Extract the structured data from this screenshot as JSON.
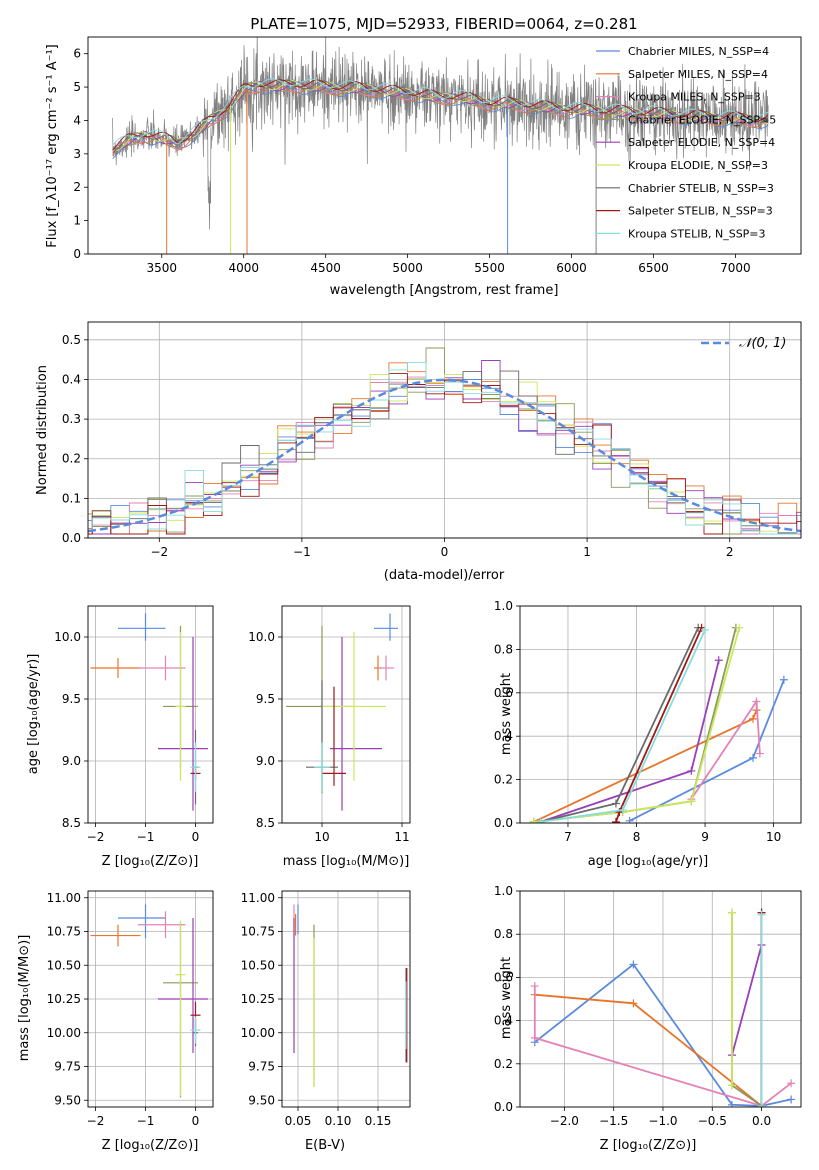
{
  "colors": [
    "#5a8ade",
    "#e8742a",
    "#e482b8",
    "#8b9a5a",
    "#9a3fb8",
    "#c9e85a",
    "#6a6a6a",
    "#a01818",
    "#88dcdc"
  ],
  "chart_data": [
    {
      "id": "spectrum",
      "type": "line",
      "title": "PLATE=1075, MJD=52933, FIBERID=0064, z=0.281",
      "xlabel": "wavelength [Angstrom, rest frame]",
      "ylabel": "Flux [f_λ10⁻¹⁷ erg cm⁻² s⁻¹ A⁻¹]",
      "xlim": [
        3050,
        7400
      ],
      "ylim": [
        0,
        6.5
      ],
      "xticks": [
        3500,
        4000,
        4500,
        5000,
        5500,
        6000,
        6500,
        7000
      ],
      "yticks": [
        0,
        1,
        2,
        3,
        4,
        5,
        6
      ],
      "grid": false,
      "legend_position": "right",
      "series_note": "data spectrum (grey) with 9 model fits overplotted",
      "continuum": [
        [
          3200,
          3.1
        ],
        [
          3300,
          3.4
        ],
        [
          3400,
          3.55
        ],
        [
          3500,
          3.45
        ],
        [
          3600,
          3.3
        ],
        [
          3700,
          3.6
        ],
        [
          3800,
          4.0
        ],
        [
          3900,
          4.35
        ],
        [
          4000,
          4.9
        ],
        [
          4100,
          5.05
        ],
        [
          4200,
          5.0
        ],
        [
          4300,
          5.05
        ],
        [
          4400,
          5.0
        ],
        [
          4500,
          5.0
        ],
        [
          4600,
          4.95
        ],
        [
          4700,
          4.95
        ],
        [
          4800,
          4.9
        ],
        [
          4900,
          4.85
        ],
        [
          5000,
          4.8
        ],
        [
          5100,
          4.75
        ],
        [
          5200,
          4.65
        ],
        [
          5300,
          4.7
        ],
        [
          5400,
          4.6
        ],
        [
          5500,
          4.5
        ],
        [
          5600,
          4.5
        ],
        [
          5700,
          4.45
        ],
        [
          5800,
          4.4
        ],
        [
          5900,
          4.35
        ],
        [
          6000,
          4.3
        ],
        [
          6100,
          4.3
        ],
        [
          6200,
          4.25
        ],
        [
          6300,
          4.25
        ],
        [
          6400,
          4.2
        ],
        [
          6500,
          4.2
        ],
        [
          6600,
          4.15
        ],
        [
          6700,
          4.1
        ],
        [
          6800,
          4.1
        ],
        [
          6900,
          4.05
        ],
        [
          7000,
          4.05
        ],
        [
          7100,
          4.0
        ],
        [
          7200,
          4.0
        ]
      ],
      "legend": [
        "Chabrier MILES, N_SSP=4",
        "Salpeter MILES, N_SSP=4",
        "Kroupa MILES, N_SSP=3",
        "Chabrier ELODIE, N_SSP=5",
        "Salpeter ELODIE, N_SSP=4",
        "Kroupa ELODIE, N_SSP=3",
        "Chabrier STELIB, N_SSP=3",
        "Salpeter STELIB, N_SSP=3",
        "Kroupa STELIB, N_SSP=3"
      ]
    },
    {
      "id": "residuals",
      "type": "histogram",
      "xlabel": "(data-model)/error",
      "ylabel": "Normed distribution",
      "xlim": [
        -2.5,
        2.5
      ],
      "ylim": [
        0,
        0.545
      ],
      "xticks": [
        -2,
        -1,
        0,
        1,
        2
      ],
      "yticks": [
        0.0,
        0.1,
        0.2,
        0.3,
        0.4,
        0.5
      ],
      "grid": true,
      "bins": 40,
      "reference_curve": "𝒩(0, 1)",
      "legend_position": "top-right"
    },
    {
      "id": "age_vs_Z",
      "type": "errorbar",
      "xlabel": "Z [log₁₀(Z/Z⊙)]",
      "ylabel": "age  [log₁₀(age/yr)]",
      "xlim": [
        -2.15,
        0.35
      ],
      "ylim": [
        8.5,
        10.25
      ],
      "xticks": [
        -2,
        -1,
        0
      ],
      "yticks": [
        8.5,
        9.0,
        9.5,
        10.0
      ],
      "grid": true,
      "points": [
        {
          "c": 0,
          "x": -1.0,
          "y": 10.07,
          "xe": [
            0.55,
            0.4
          ],
          "ye": [
            0.1,
            0.12
          ]
        },
        {
          "c": 1,
          "x": -1.55,
          "y": 9.75,
          "xe": [
            0.55,
            0.45
          ],
          "ye": [
            0.08,
            0.08
          ]
        },
        {
          "c": 2,
          "x": -0.6,
          "y": 9.75,
          "xe": [
            0.55,
            0.4
          ],
          "ye": [
            0.1,
            0.1
          ]
        },
        {
          "c": 3,
          "x": -0.3,
          "y": 9.44,
          "xe": [
            0.35,
            0.35
          ],
          "ye": [
            0.5,
            0.65
          ]
        },
        {
          "c": 4,
          "x": -0.05,
          "y": 9.1,
          "xe": [
            0.7,
            0.3
          ],
          "ye": [
            0.5,
            0.9
          ]
        },
        {
          "c": 5,
          "x": -0.3,
          "y": 9.44,
          "xe": [
            0.1,
            0.1
          ],
          "ye": [
            0.6,
            0.6
          ]
        },
        {
          "c": 6,
          "x": 0.0,
          "y": 8.95,
          "xe": [
            0.05,
            0.05
          ],
          "ye": [
            0.3,
            0.3
          ]
        },
        {
          "c": 7,
          "x": 0.0,
          "y": 8.9,
          "xe": [
            0.1,
            0.1
          ],
          "ye": [
            0.05,
            0.05
          ]
        },
        {
          "c": 8,
          "x": 0.0,
          "y": 8.95,
          "xe": [
            0.1,
            0.1
          ],
          "ye": [
            0.2,
            0.2
          ]
        }
      ]
    },
    {
      "id": "age_vs_mass",
      "type": "errorbar",
      "xlabel": "mass [log₁₀(M/M⊙)]",
      "ylabel": "",
      "xlim": [
        9.5,
        11.1
      ],
      "ylim": [
        8.5,
        10.25
      ],
      "xticks": [
        10,
        11
      ],
      "yticks": [
        8.5,
        9.0,
        9.5,
        10.0
      ],
      "grid": true,
      "points": [
        {
          "c": 0,
          "x": 10.85,
          "y": 10.07,
          "xe": [
            0.2,
            0.1
          ],
          "ye": [
            0.1,
            0.12
          ]
        },
        {
          "c": 1,
          "x": 10.7,
          "y": 9.75,
          "xe": [
            0.05,
            0.05
          ],
          "ye": [
            0.1,
            0.1
          ]
        },
        {
          "c": 2,
          "x": 10.8,
          "y": 9.75,
          "xe": [
            0.1,
            0.1
          ],
          "ye": [
            0.1,
            0.1
          ]
        },
        {
          "c": 3,
          "x": 10.0,
          "y": 9.44,
          "xe": [
            0.45,
            0.4
          ],
          "ye": [
            0.7,
            0.65
          ]
        },
        {
          "c": 4,
          "x": 10.25,
          "y": 9.1,
          "xe": [
            0.15,
            0.5
          ],
          "ye": [
            0.5,
            0.9
          ]
        },
        {
          "c": 5,
          "x": 10.4,
          "y": 9.44,
          "xe": [
            0.4,
            0.4
          ],
          "ye": [
            0.6,
            0.6
          ]
        },
        {
          "c": 6,
          "x": 10.0,
          "y": 8.95,
          "xe": [
            0.2,
            0.2
          ],
          "ye": [
            0.2,
            0.7
          ]
        },
        {
          "c": 7,
          "x": 10.15,
          "y": 8.9,
          "xe": [
            0.15,
            0.15
          ],
          "ye": [
            0.1,
            0.7
          ]
        },
        {
          "c": 8,
          "x": 10.0,
          "y": 8.95,
          "xe": [
            0.1,
            0.1
          ],
          "ye": [
            0.2,
            0.2
          ]
        }
      ]
    },
    {
      "id": "weight_vs_age",
      "type": "line",
      "xlabel": "age  [log₁₀(age/yr)]",
      "ylabel": "mass weight",
      "xlim": [
        6.3,
        10.4
      ],
      "ylim": [
        0,
        1.0
      ],
      "xticks": [
        7,
        8,
        9,
        10
      ],
      "yticks": [
        0.0,
        0.2,
        0.4,
        0.6,
        0.8,
        1.0
      ],
      "grid": true,
      "series": [
        {
          "c": 0,
          "points": [
            [
              7.9,
              0.01
            ],
            [
              9.7,
              0.3
            ],
            [
              10.15,
              0.66
            ]
          ]
        },
        {
          "c": 1,
          "points": [
            [
              6.5,
              0.005
            ],
            [
              9.7,
              0.48
            ],
            [
              9.75,
              0.52
            ]
          ]
        },
        {
          "c": 2,
          "points": [
            [
              8.8,
              0.11
            ],
            [
              9.75,
              0.56
            ],
            [
              9.8,
              0.32
            ]
          ]
        },
        {
          "c": 3,
          "points": [
            [
              6.5,
              0.005
            ],
            [
              7.8,
              0.05
            ],
            [
              8.8,
              0.1
            ],
            [
              9.45,
              0.9
            ]
          ]
        },
        {
          "c": 4,
          "points": [
            [
              6.6,
              0.005
            ],
            [
              8.8,
              0.24
            ],
            [
              9.2,
              0.75
            ]
          ]
        },
        {
          "c": 5,
          "points": [
            [
              6.5,
              0.005
            ],
            [
              7.8,
              0.05
            ],
            [
              8.8,
              0.1
            ],
            [
              9.5,
              0.9
            ]
          ]
        },
        {
          "c": 6,
          "points": [
            [
              6.6,
              0.005
            ],
            [
              7.7,
              0.09
            ],
            [
              8.9,
              0.9
            ]
          ]
        },
        {
          "c": 7,
          "points": [
            [
              7.7,
              0.005
            ],
            [
              7.75,
              0.05
            ],
            [
              8.95,
              0.9
            ]
          ]
        },
        {
          "c": 8,
          "points": [
            [
              6.6,
              0.005
            ],
            [
              7.8,
              0.06
            ],
            [
              9.0,
              0.89
            ]
          ]
        }
      ]
    },
    {
      "id": "mass_vs_Z",
      "type": "errorbar",
      "xlabel": "Z [log₁₀(Z/Z⊙)]",
      "ylabel": "mass [log₁₀(M/M⊙)]",
      "xlim": [
        -2.15,
        0.35
      ],
      "ylim": [
        9.45,
        11.05
      ],
      "xticks": [
        -2,
        -1,
        0
      ],
      "yticks": [
        9.5,
        9.75,
        10.0,
        10.25,
        10.5,
        10.75,
        11.0
      ],
      "grid": true,
      "points": [
        {
          "c": 0,
          "x": -1.0,
          "y": 10.85,
          "xe": [
            0.55,
            0.4
          ],
          "ye": [
            0.15,
            0.1
          ]
        },
        {
          "c": 1,
          "x": -1.55,
          "y": 10.72,
          "xe": [
            0.55,
            0.45
          ],
          "ye": [
            0.08,
            0.08
          ]
        },
        {
          "c": 2,
          "x": -0.6,
          "y": 10.8,
          "xe": [
            0.55,
            0.4
          ],
          "ye": [
            0.1,
            0.1
          ]
        },
        {
          "c": 3,
          "x": -0.3,
          "y": 10.37,
          "xe": [
            0.35,
            0.35
          ],
          "ye": [
            0.85,
            0.45
          ]
        },
        {
          "c": 4,
          "x": -0.05,
          "y": 10.25,
          "xe": [
            0.7,
            0.3
          ],
          "ye": [
            0.4,
            0.6
          ]
        },
        {
          "c": 5,
          "x": -0.3,
          "y": 10.43,
          "xe": [
            0.1,
            0.1
          ],
          "ye": [
            0.9,
            0.4
          ]
        },
        {
          "c": 6,
          "x": 0.0,
          "y": 10.0,
          "xe": [
            0.05,
            0.05
          ],
          "ye": [
            0.1,
            0.1
          ]
        },
        {
          "c": 7,
          "x": 0.0,
          "y": 10.13,
          "xe": [
            0.1,
            0.1
          ],
          "ye": [
            0.1,
            0.1
          ]
        },
        {
          "c": 8,
          "x": 0.0,
          "y": 10.02,
          "xe": [
            0.1,
            0.1
          ],
          "ye": [
            0.1,
            0.1
          ]
        }
      ]
    },
    {
      "id": "mass_vs_ebv",
      "type": "errorbar",
      "xlabel": "E(B-V)",
      "ylabel": "",
      "xlim": [
        0.03,
        0.19
      ],
      "ylim": [
        9.45,
        11.05
      ],
      "xticks": [
        0.05,
        0.1,
        0.15
      ],
      "yticks": [
        9.5,
        9.75,
        10.0,
        10.25,
        10.5,
        10.75,
        11.0
      ],
      "grid": true,
      "points": [
        {
          "c": 0,
          "x": 0.05,
          "y": 10.85,
          "xe": [
            0,
            0
          ],
          "ye": [
            0.12,
            0.1
          ]
        },
        {
          "c": 1,
          "x": 0.047,
          "y": 10.8,
          "xe": [
            0,
            0
          ],
          "ye": [
            0.08,
            0.08
          ]
        },
        {
          "c": 2,
          "x": 0.045,
          "y": 10.8,
          "xe": [
            0,
            0
          ],
          "ye": [
            0.1,
            0.15
          ]
        },
        {
          "c": 3,
          "x": 0.07,
          "y": 10.2,
          "xe": [
            0,
            0
          ],
          "ye": [
            0.6,
            0.6
          ]
        },
        {
          "c": 4,
          "x": 0.045,
          "y": 10.35,
          "xe": [
            0,
            0
          ],
          "ye": [
            0.5,
            0.5
          ]
        },
        {
          "c": 5,
          "x": 0.07,
          "y": 10.2,
          "xe": [
            0,
            0
          ],
          "ye": [
            0.6,
            0.5
          ]
        },
        {
          "c": 6,
          "x": 0.185,
          "y": 10.13,
          "xe": [
            0,
            0
          ],
          "ye": [
            0.35,
            0.35
          ]
        },
        {
          "c": 7,
          "x": 0.186,
          "y": 10.13,
          "xe": [
            0,
            0
          ],
          "ye": [
            0.35,
            0.35
          ]
        },
        {
          "c": 8,
          "x": 0.185,
          "y": 10.13,
          "xe": [
            0,
            0
          ],
          "ye": [
            0.25,
            0.25
          ]
        }
      ]
    },
    {
      "id": "weight_vs_Z",
      "type": "line",
      "xlabel": "Z [log₁₀(Z/Z⊙)]",
      "ylabel": "mass weight",
      "xlim": [
        -2.45,
        0.4
      ],
      "ylim": [
        0,
        1.0
      ],
      "xticks": [
        -2.0,
        -1.5,
        -1.0,
        -0.5,
        0.0
      ],
      "yticks": [
        0.0,
        0.2,
        0.4,
        0.6,
        0.8,
        1.0
      ],
      "grid": true,
      "series": [
        {
          "c": 0,
          "points": [
            [
              -2.3,
              0.3
            ],
            [
              -1.3,
              0.66
            ],
            [
              -0.3,
              0.01
            ],
            [
              0.0,
              0.005
            ],
            [
              0.3,
              0.035
            ]
          ]
        },
        {
          "c": 1,
          "points": [
            [
              -2.3,
              0.52
            ],
            [
              -1.3,
              0.48
            ],
            [
              0.0,
              0.005
            ]
          ]
        },
        {
          "c": 2,
          "points": [
            [
              -2.3,
              0.56
            ],
            [
              -2.3,
              0.32
            ],
            [
              0.0,
              0.005
            ],
            [
              0.3,
              0.11
            ]
          ]
        },
        {
          "c": 3,
          "points": [
            [
              -0.3,
              0.9
            ],
            [
              -0.3,
              0.1
            ],
            [
              0.0,
              0.005
            ]
          ]
        },
        {
          "c": 4,
          "points": [
            [
              -0.3,
              0.24
            ],
            [
              0.0,
              0.75
            ]
          ]
        },
        {
          "c": 5,
          "points": [
            [
              -0.3,
              0.9
            ],
            [
              -0.3,
              0.1
            ]
          ]
        },
        {
          "c": 6,
          "points": [
            [
              0.0,
              0.9
            ],
            [
              0.0,
              0.005
            ]
          ]
        },
        {
          "c": 7,
          "points": [
            [
              0.0,
              0.9
            ],
            [
              0.0,
              0.005
            ]
          ]
        },
        {
          "c": 8,
          "points": [
            [
              0.0,
              0.89
            ],
            [
              0.0,
              0.005
            ]
          ]
        }
      ]
    }
  ]
}
